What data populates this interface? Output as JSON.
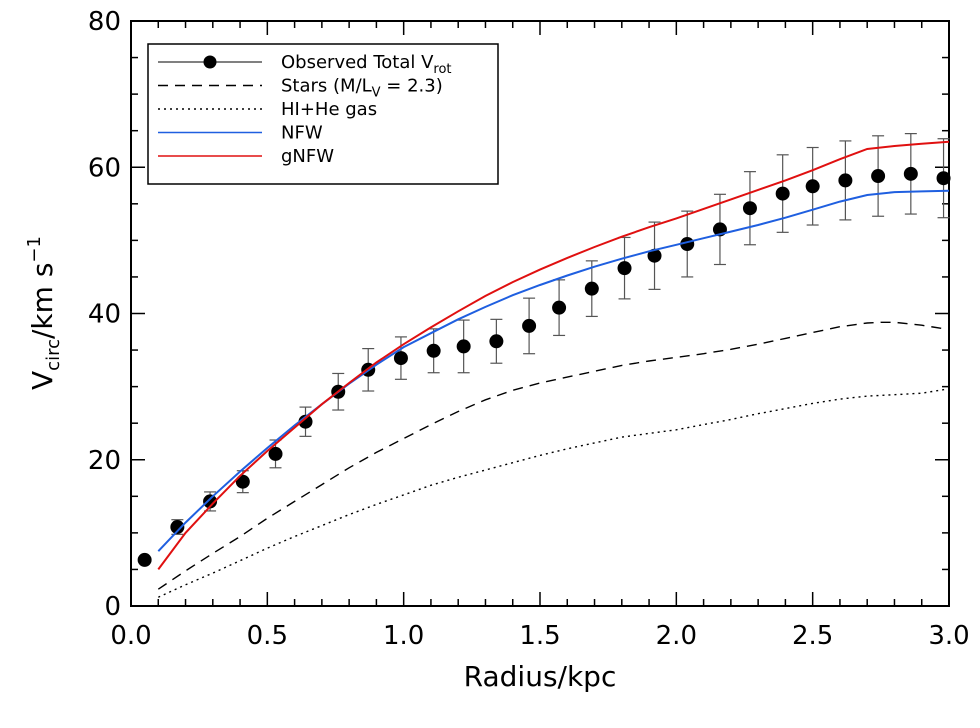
{
  "chart_data": {
    "type": "line",
    "xlabel": "Radius/kpc",
    "ylabel": {
      "main": "V",
      "sub": "circ",
      "rest": "/km s",
      "sup": "−1"
    },
    "xlim": [
      0,
      3
    ],
    "ylim": [
      0,
      80
    ],
    "xticks": [
      0.0,
      0.5,
      1.0,
      1.5,
      2.0,
      2.5,
      3.0
    ],
    "xtick_labels": [
      "0.0",
      "0.5",
      "1.0",
      "1.5",
      "2.0",
      "2.5",
      "3.0"
    ],
    "yticks": [
      0,
      20,
      40,
      60,
      80
    ],
    "ytick_labels": [
      "0",
      "20",
      "40",
      "60",
      "80"
    ],
    "grid": false,
    "legend": {
      "position": "top-left",
      "entries": [
        {
          "key": "observed",
          "label": "Observed Total V",
          "label_sub": "rot",
          "style": "solid+marker",
          "color": "#000000"
        },
        {
          "key": "stars",
          "label": "Stars (M/L",
          "label_sub": "V",
          "label_after": " = 2.3)",
          "style": "dashed",
          "color": "#000000"
        },
        {
          "key": "gas",
          "label": "HI+He gas",
          "style": "dotted",
          "color": "#000000"
        },
        {
          "key": "nfw",
          "label": "NFW",
          "style": "solid",
          "color": "#1f5fe0"
        },
        {
          "key": "gnfw",
          "label": "gNFW",
          "style": "solid",
          "color": "#e01010"
        }
      ]
    },
    "series": [
      {
        "key": "observed",
        "type": "scatter",
        "color": "#000000",
        "points": [
          {
            "x": 0.05,
            "y": 6.3,
            "err": 0
          },
          {
            "x": 0.17,
            "y": 10.8,
            "err": 1.0
          },
          {
            "x": 0.29,
            "y": 14.3,
            "err": 1.3
          },
          {
            "x": 0.41,
            "y": 17.0,
            "err": 1.5
          },
          {
            "x": 0.53,
            "y": 20.8,
            "err": 1.9
          },
          {
            "x": 0.64,
            "y": 25.2,
            "err": 2.0
          },
          {
            "x": 0.76,
            "y": 29.3,
            "err": 2.5
          },
          {
            "x": 0.87,
            "y": 32.3,
            "err": 2.9
          },
          {
            "x": 0.99,
            "y": 33.9,
            "err": 2.9
          },
          {
            "x": 1.11,
            "y": 34.9,
            "err": 3.0
          },
          {
            "x": 1.22,
            "y": 35.5,
            "err": 3.6
          },
          {
            "x": 1.34,
            "y": 36.2,
            "err": 3.0
          },
          {
            "x": 1.46,
            "y": 38.3,
            "err": 3.8
          },
          {
            "x": 1.57,
            "y": 40.8,
            "err": 3.8
          },
          {
            "x": 1.69,
            "y": 43.4,
            "err": 3.8
          },
          {
            "x": 1.81,
            "y": 46.2,
            "err": 4.2
          },
          {
            "x": 1.92,
            "y": 47.9,
            "err": 4.6
          },
          {
            "x": 2.04,
            "y": 49.5,
            "err": 4.5
          },
          {
            "x": 2.16,
            "y": 51.5,
            "err": 4.8
          },
          {
            "x": 2.27,
            "y": 54.4,
            "err": 5.0
          },
          {
            "x": 2.39,
            "y": 56.4,
            "err": 5.3
          },
          {
            "x": 2.5,
            "y": 57.4,
            "err": 5.3
          },
          {
            "x": 2.62,
            "y": 58.2,
            "err": 5.4
          },
          {
            "x": 2.74,
            "y": 58.8,
            "err": 5.5
          },
          {
            "x": 2.86,
            "y": 59.1,
            "err": 5.5
          },
          {
            "x": 2.98,
            "y": 58.5,
            "err": 5.4
          }
        ]
      },
      {
        "key": "stars",
        "type": "line",
        "style": "dashed",
        "color": "#000000",
        "x": [
          0.1,
          0.2,
          0.3,
          0.4,
          0.5,
          0.6,
          0.7,
          0.8,
          0.9,
          1.0,
          1.1,
          1.2,
          1.3,
          1.4,
          1.5,
          1.6,
          1.7,
          1.8,
          1.9,
          2.0,
          2.1,
          2.2,
          2.3,
          2.4,
          2.5,
          2.6,
          2.7,
          2.75,
          2.8,
          2.9,
          3.0
        ],
        "y": [
          2.3,
          4.8,
          7.2,
          9.5,
          12.0,
          14.3,
          16.6,
          18.9,
          21.0,
          22.9,
          24.8,
          26.6,
          28.2,
          29.5,
          30.5,
          31.3,
          32.1,
          32.9,
          33.5,
          34.0,
          34.5,
          35.1,
          35.8,
          36.6,
          37.4,
          38.2,
          38.7,
          38.8,
          38.8,
          38.4,
          37.8
        ]
      },
      {
        "key": "gas",
        "type": "line",
        "style": "dotted",
        "color": "#000000",
        "x": [
          0.1,
          0.2,
          0.3,
          0.4,
          0.5,
          0.6,
          0.7,
          0.8,
          0.9,
          1.0,
          1.1,
          1.2,
          1.3,
          1.4,
          1.5,
          1.6,
          1.7,
          1.8,
          1.9,
          2.0,
          2.1,
          2.2,
          2.3,
          2.4,
          2.5,
          2.6,
          2.7,
          2.8,
          2.9,
          3.0
        ],
        "y": [
          1.2,
          2.9,
          4.5,
          6.2,
          7.9,
          9.5,
          11.0,
          12.5,
          13.9,
          15.2,
          16.5,
          17.6,
          18.6,
          19.6,
          20.6,
          21.5,
          22.3,
          23.1,
          23.6,
          24.1,
          24.8,
          25.5,
          26.3,
          27.0,
          27.7,
          28.3,
          28.7,
          28.9,
          29.1,
          29.7
        ]
      },
      {
        "key": "nfw",
        "type": "line",
        "style": "solid",
        "color": "#1f5fe0",
        "x": [
          0.1,
          0.2,
          0.3,
          0.4,
          0.5,
          0.6,
          0.7,
          0.8,
          0.9,
          1.0,
          1.1,
          1.2,
          1.3,
          1.4,
          1.5,
          1.6,
          1.7,
          1.8,
          1.9,
          2.0,
          2.1,
          2.2,
          2.3,
          2.4,
          2.5,
          2.6,
          2.7,
          2.8,
          2.9,
          3.0
        ],
        "y": [
          7.5,
          11.4,
          15.0,
          18.4,
          21.6,
          24.7,
          27.6,
          30.4,
          33.0,
          35.4,
          37.3,
          39.2,
          40.9,
          42.5,
          43.9,
          45.2,
          46.4,
          47.5,
          48.5,
          49.4,
          50.3,
          51.2,
          52.1,
          53.1,
          54.2,
          55.3,
          56.2,
          56.6,
          56.7,
          56.8
        ]
      },
      {
        "key": "gnfw",
        "type": "line",
        "style": "solid",
        "color": "#e01010",
        "x": [
          0.1,
          0.2,
          0.3,
          0.4,
          0.5,
          0.6,
          0.7,
          0.8,
          0.9,
          1.0,
          1.1,
          1.2,
          1.3,
          1.4,
          1.5,
          1.6,
          1.7,
          1.8,
          1.9,
          2.0,
          2.1,
          2.2,
          2.3,
          2.4,
          2.5,
          2.6,
          2.7,
          2.8,
          2.9,
          3.0
        ],
        "y": [
          5.0,
          10.0,
          14.0,
          17.8,
          21.2,
          24.4,
          27.6,
          30.5,
          33.3,
          35.8,
          38.1,
          40.3,
          42.4,
          44.3,
          46.0,
          47.6,
          49.1,
          50.5,
          51.8,
          53.0,
          54.3,
          55.6,
          56.9,
          58.2,
          59.6,
          61.1,
          62.5,
          62.9,
          63.2,
          63.5
        ]
      }
    ]
  }
}
